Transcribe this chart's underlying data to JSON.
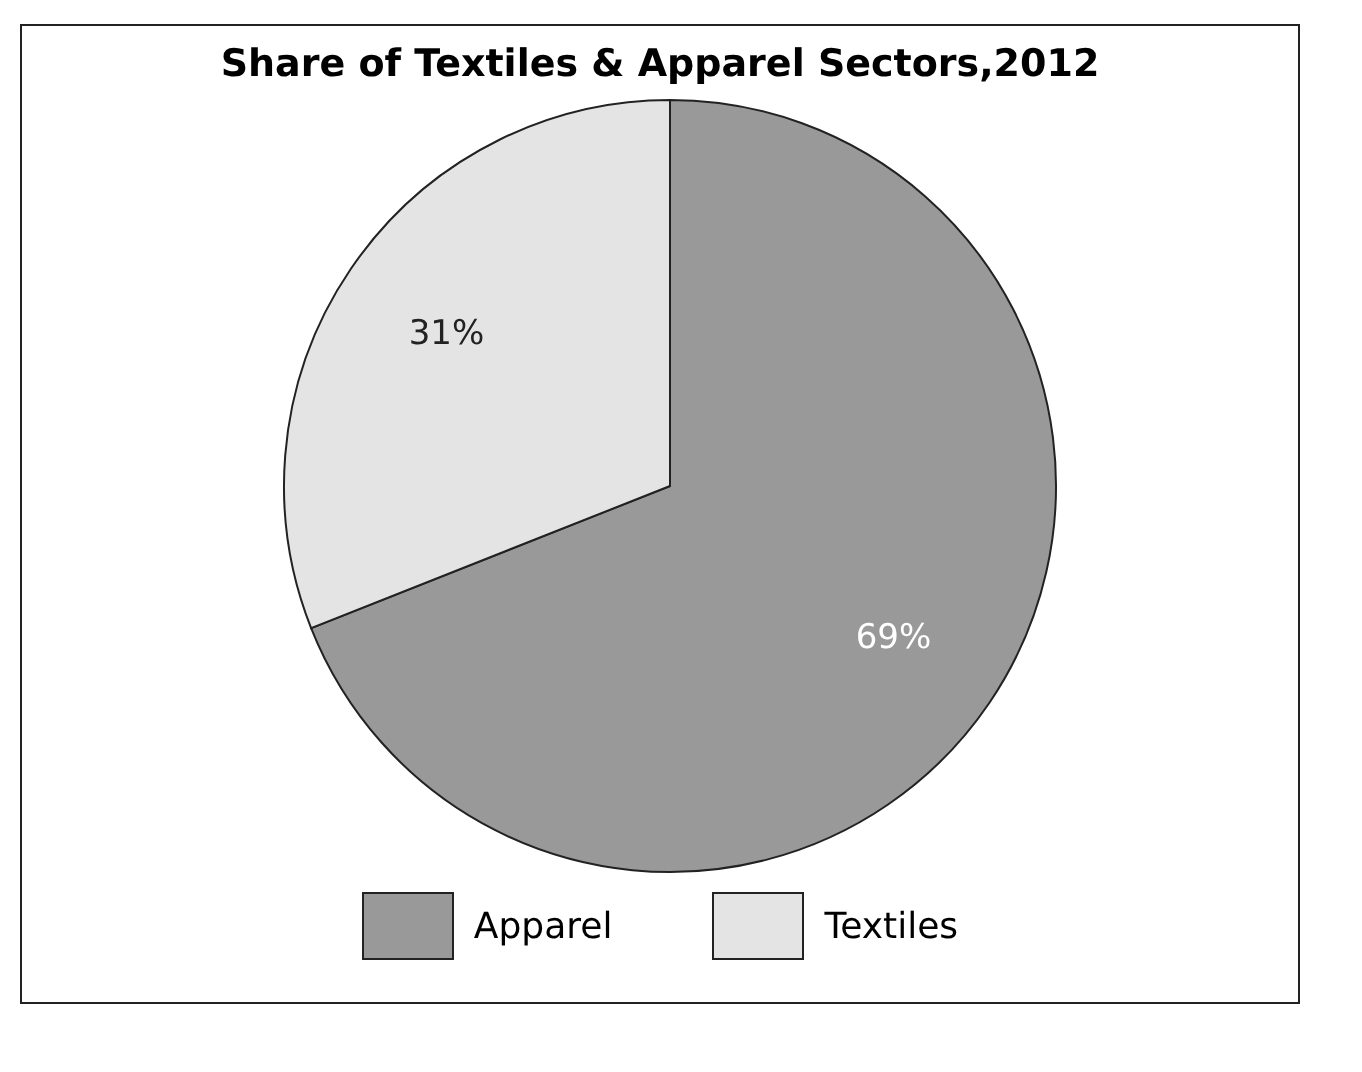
{
  "chart_data": {
    "type": "pie",
    "title": "Share of Textiles & Apparel Sectors,2012",
    "categories": [
      "Apparel",
      "Textiles"
    ],
    "values": [
      69,
      31
    ],
    "colors": [
      "#999999",
      "#e3e4e3"
    ],
    "value_labels": [
      "69%",
      "31%"
    ],
    "legend": "bottom"
  }
}
